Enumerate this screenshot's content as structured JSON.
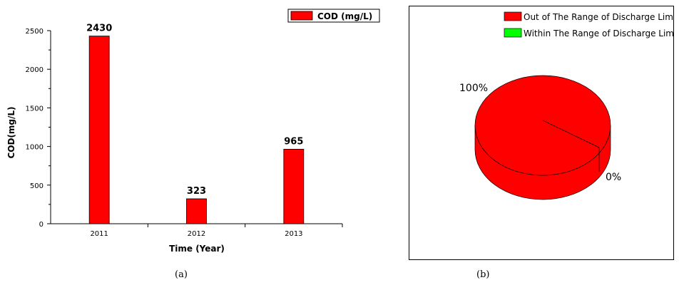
{
  "chart_data": [
    {
      "type": "bar",
      "categories": [
        "2011",
        "2012",
        "2013"
      ],
      "series": [
        {
          "name": "COD (mg/L)",
          "values": [
            2430,
            323,
            965
          ]
        }
      ],
      "data_labels": [
        "2430",
        "323",
        "965"
      ],
      "xlabel": "Time (Year)",
      "ylabel": "COD(mg/L)",
      "ylim": [
        0,
        2500
      ],
      "yticks": [
        "0",
        "500",
        "1000",
        "1500",
        "2000",
        "2500"
      ],
      "bar_color": "#ff0000",
      "grid": false,
      "legend_position": "top-right"
    },
    {
      "type": "pie",
      "style": "3d",
      "series": [
        {
          "name": "Out of The Range of Discharge Limit",
          "value": 100,
          "label": "100%",
          "color": "#ff0000"
        },
        {
          "name": "Within The Range of Discharge Limit",
          "value": 0,
          "label": "0%",
          "color": "#00ff00"
        }
      ],
      "legend_position": "top-right"
    }
  ],
  "captions": {
    "a": "(a)",
    "b": "(b)"
  }
}
